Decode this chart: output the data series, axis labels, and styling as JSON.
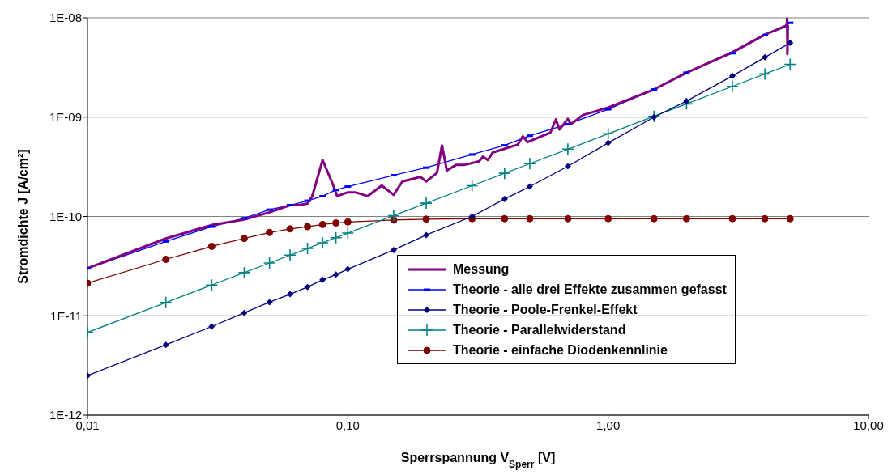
{
  "chart_data": {
    "type": "line",
    "xlabel": "Sperrspannung V$_{Sperr}$ [V]",
    "ylabel": "Stromdichte J [A/cm²]",
    "log": "xy",
    "xlim": [
      0.01,
      10
    ],
    "xticks": [
      {
        "value": 0.01,
        "label": "0,01"
      },
      {
        "value": 0.1,
        "label": "0,10"
      },
      {
        "value": 1,
        "label": "1,00"
      },
      {
        "value": 10,
        "label": "10,00"
      }
    ],
    "ylim": [
      1e-12,
      1e-08
    ],
    "yticks": [
      {
        "value": 1e-12,
        "label": "1E-12"
      },
      {
        "value": 1e-11,
        "label": "1E-11"
      },
      {
        "value": 1e-10,
        "label": "1E-10"
      },
      {
        "value": 1e-09,
        "label": "1E-09"
      },
      {
        "value": 1e-08,
        "label": "1E-08"
      }
    ],
    "grid": "y",
    "legend": "bottom right",
    "line_style": "solid",
    "series": [
      {
        "name": "Messung",
        "color": "#800080",
        "marker": "none",
        "x": [
          0.01,
          0.02,
          0.03,
          0.04,
          0.05,
          0.06,
          0.065,
          0.07,
          0.073,
          0.08,
          0.087,
          0.091,
          0.1,
          0.107,
          0.119,
          0.135,
          0.15,
          0.162,
          0.19,
          0.2,
          0.22,
          0.23,
          0.24,
          0.26,
          0.28,
          0.32,
          0.33,
          0.345,
          0.36,
          0.45,
          0.47,
          0.49,
          0.6,
          0.63,
          0.65,
          0.7,
          0.72,
          0.8,
          1,
          1.5,
          2,
          3,
          4,
          4.85,
          4.87,
          4.88,
          4.9
        ],
        "values": [
          3e-11,
          6e-11,
          8.2e-11,
          9.3e-11,
          1.1e-10,
          1.3e-10,
          1.3e-10,
          1.35e-10,
          1.6e-10,
          3.7e-10,
          2.2e-10,
          1.6e-10,
          1.75e-10,
          1.75e-10,
          1.6e-10,
          2.05e-10,
          1.65e-10,
          2.25e-10,
          2.5e-10,
          2.25e-10,
          2.75e-10,
          5.2e-10,
          2.9e-10,
          3.3e-10,
          3.3e-10,
          3.6e-10,
          4e-10,
          3.7e-10,
          4.4e-10,
          5.3e-10,
          6.4e-10,
          5.6e-10,
          7e-10,
          9.5e-10,
          7.5e-10,
          9.6e-10,
          8.5e-10,
          1.05e-09,
          1.25e-09,
          1.9e-09,
          2.8e-09,
          4.5e-09,
          6.8e-09,
          8.3e-09,
          1e-08,
          4.3e-09,
          8.5e-09
        ]
      },
      {
        "name": "Theorie - alle drei Effekte zusammen gefasst",
        "color": "#0000ff",
        "marker": "square",
        "x": [
          0.01,
          0.02,
          0.03,
          0.04,
          0.05,
          0.06,
          0.07,
          0.08,
          0.09,
          0.1,
          0.15,
          0.2,
          0.3,
          0.4,
          0.5,
          0.7,
          1,
          1.5,
          2,
          3,
          4,
          5
        ],
        "values": [
          3e-11,
          5.6e-11,
          7.9e-11,
          9.6e-11,
          1.17e-10,
          1.3e-10,
          1.44e-10,
          1.6e-10,
          1.85e-10,
          2e-10,
          2.6e-10,
          3.1e-10,
          4.2e-10,
          5.2e-10,
          6.5e-10,
          8.5e-10,
          1.2e-09,
          1.9e-09,
          2.8e-09,
          4.4e-09,
          6.7e-09,
          8.9e-09
        ]
      },
      {
        "name": "Theorie - Poole-Frenkel-Effekt",
        "color": "#000080",
        "marker": "diamond",
        "x": [
          0.01,
          0.02,
          0.03,
          0.04,
          0.05,
          0.06,
          0.07,
          0.08,
          0.09,
          0.1,
          0.15,
          0.2,
          0.3,
          0.4,
          0.5,
          0.7,
          1,
          1.5,
          2,
          3,
          4,
          5
        ],
        "values": [
          2.5e-12,
          5.1e-12,
          7.8e-12,
          1.07e-11,
          1.37e-11,
          1.65e-11,
          1.95e-11,
          2.3e-11,
          2.6e-11,
          2.95e-11,
          4.6e-11,
          6.5e-11,
          1e-10,
          1.5e-10,
          2e-10,
          3.2e-10,
          5.5e-10,
          1e-09,
          1.45e-09,
          2.6e-09,
          4e-09,
          5.6e-09
        ]
      },
      {
        "name": "Theorie - Parallelwiderstand",
        "color": "#008080",
        "marker": "cross",
        "x": [
          0.01,
          0.02,
          0.03,
          0.04,
          0.05,
          0.06,
          0.07,
          0.08,
          0.09,
          0.1,
          0.15,
          0.2,
          0.3,
          0.4,
          0.5,
          0.7,
          1,
          1.5,
          2,
          3,
          4,
          5
        ],
        "values": [
          6.8e-12,
          1.36e-11,
          2.04e-11,
          2.72e-11,
          3.4e-11,
          4.08e-11,
          4.76e-11,
          5.44e-11,
          6.12e-11,
          6.8e-11,
          1.02e-10,
          1.36e-10,
          2.04e-10,
          2.72e-10,
          3.4e-10,
          4.76e-10,
          6.8e-10,
          1.02e-09,
          1.36e-09,
          2.04e-09,
          2.72e-09,
          3.4e-09
        ]
      },
      {
        "name": "Theorie - einfache Diodenkennlinie",
        "color": "#800000",
        "marker": "circle",
        "x": [
          0.01,
          0.02,
          0.03,
          0.04,
          0.05,
          0.06,
          0.07,
          0.08,
          0.09,
          0.1,
          0.15,
          0.2,
          0.3,
          0.4,
          0.5,
          0.7,
          1,
          1.5,
          2,
          3,
          4,
          5
        ],
        "values": [
          2.13e-11,
          3.7e-11,
          5e-11,
          6e-11,
          6.9e-11,
          7.5e-11,
          7.9e-11,
          8.3e-11,
          8.6e-11,
          8.8e-11,
          9.2e-11,
          9.4e-11,
          9.5e-11,
          9.5e-11,
          9.5e-11,
          9.5e-11,
          9.5e-11,
          9.5e-11,
          9.5e-11,
          9.5e-11,
          9.5e-11,
          9.5e-11
        ]
      }
    ]
  }
}
